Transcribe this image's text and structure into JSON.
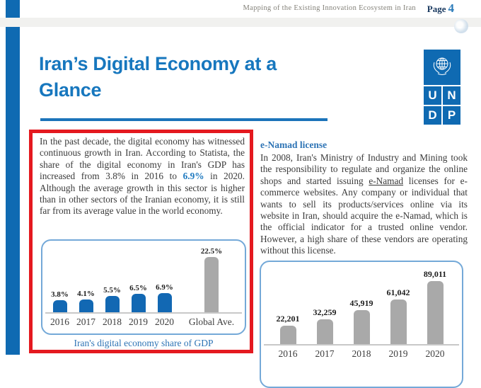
{
  "header": {
    "doc_title": "Mapping of the Existing Innovation Ecosystem in Iran",
    "page_label": "Page",
    "page_number": "4"
  },
  "title": {
    "line1": "Iran’s Digital Economy at a",
    "line2": "Glance"
  },
  "logo": {
    "name": "UNDP",
    "letters": [
      "U",
      "N",
      "D",
      "P"
    ]
  },
  "intro": {
    "text_before": "In the past decade, the digital economy has witnessed continuous growth in Iran. According to Statista, the share of the digital economy in Iran's GDP has increased from 3.8% in 2016 to ",
    "highlight": "6.9%",
    "text_after": " in 2020. Although the average growth in this sector is higher than in other sectors of the Iranian economy, it is still far from its average value in the world economy."
  },
  "enamad": {
    "heading": "e-Namad license",
    "text_before_link": "In 2008, Iran's Ministry of Industry and Mining took the responsibility to regulate and organize the online shops and started issuing ",
    "link_text": "e-Namad",
    "text_after_link": " licenses for e-commerce websites. Any company or individual that wants to sell its products/services online via its website in Iran, should acquire the e-Namad, which is the official indicator for a trusted online vendor. However, a high share of these vendors are operating without this license."
  },
  "colors": {
    "undp_blue": "#0f6ab2",
    "title_blue": "#1777be",
    "accent_red": "#e4191f",
    "heading_blue": "#2e74b5",
    "bar_blue": "#1268b3",
    "bar_gray": "#a9a9a9"
  },
  "chart_data": [
    {
      "type": "bar",
      "title": "Iran's digital economy share of GDP",
      "categories": [
        "2016",
        "2017",
        "2018",
        "2019",
        "2020",
        "Global Ave."
      ],
      "values": [
        3.8,
        4.1,
        5.5,
        6.5,
        6.9,
        22.5
      ],
      "value_labels": [
        "3.8%",
        "4.1%",
        "5.5%",
        "6.5%",
        "6.9%",
        "22.5%"
      ],
      "bar_colors": [
        "#1268b3",
        "#1268b3",
        "#1268b3",
        "#1268b3",
        "#1268b3",
        "#a9a9a9"
      ],
      "ylim": [
        0,
        22.5
      ],
      "grid": false,
      "legend": false
    },
    {
      "type": "bar",
      "title": "",
      "categories": [
        "2016",
        "2017",
        "2018",
        "2019",
        "2020"
      ],
      "values": [
        22201,
        32259,
        45919,
        61042,
        89011
      ],
      "value_labels": [
        "22,201",
        "32,259",
        "45,919",
        "61,042",
        "89,011"
      ],
      "bar_colors": [
        "#a9a9a9",
        "#a9a9a9",
        "#a9a9a9",
        "#a9a9a9",
        "#a9a9a9"
      ],
      "ylim": [
        0,
        89011
      ],
      "grid": false,
      "legend": false
    }
  ]
}
